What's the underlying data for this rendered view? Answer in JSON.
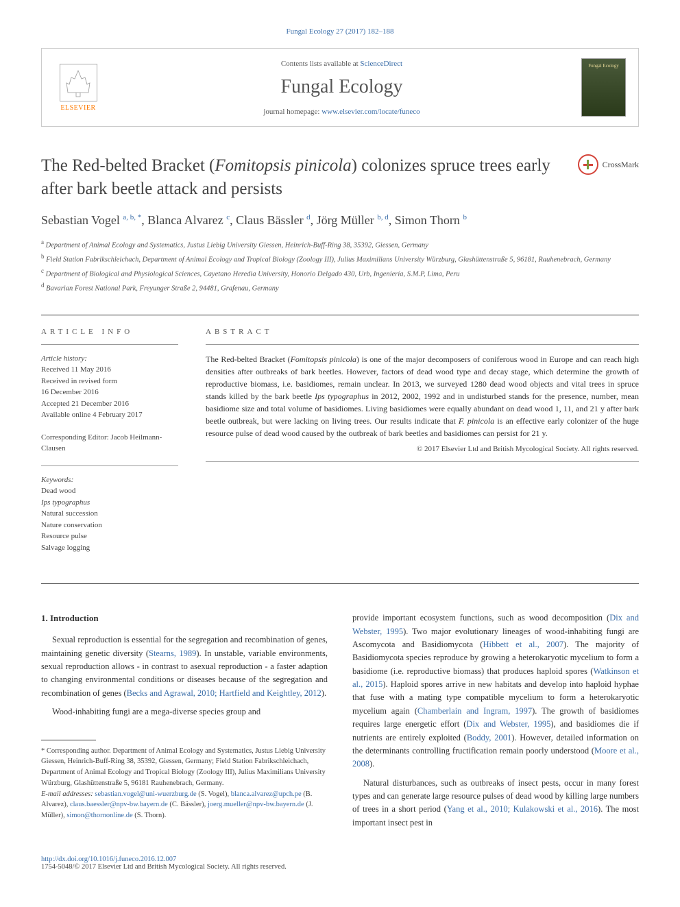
{
  "citation": "Fungal Ecology 27 (2017) 182–188",
  "header": {
    "contents_prefix": "Contents lists available at ",
    "contents_link": "ScienceDirect",
    "journal_name": "Fungal Ecology",
    "homepage_prefix": "journal homepage: ",
    "homepage_link": "www.elsevier.com/locate/funeco",
    "publisher": "ELSEVIER",
    "cover_label": "Fungal Ecology"
  },
  "article": {
    "title_pre": "The Red-belted Bracket (",
    "title_species": "Fomitopsis pinicola",
    "title_post": ") colonizes spruce trees early after bark beetle attack and persists",
    "crossmark": "CrossMark"
  },
  "authors": [
    {
      "name": "Sebastian Vogel",
      "sup": "a, b, *"
    },
    {
      "name": "Blanca Alvarez",
      "sup": "c"
    },
    {
      "name": "Claus Bässler",
      "sup": "d"
    },
    {
      "name": "Jörg Müller",
      "sup": "b, d"
    },
    {
      "name": "Simon Thorn",
      "sup": "b"
    }
  ],
  "affiliations": [
    {
      "sup": "a",
      "text": "Department of Animal Ecology and Systematics, Justus Liebig University Giessen, Heinrich-Buff-Ring 38, 35392, Giessen, Germany"
    },
    {
      "sup": "b",
      "text": "Field Station Fabrikschleichach, Department of Animal Ecology and Tropical Biology (Zoology III), Julius Maximilians University Würzburg, Glashüttenstraße 5, 96181, Rauhenebrach, Germany"
    },
    {
      "sup": "c",
      "text": "Department of Biological and Physiological Sciences, Cayetano Heredia University, Honorio Delgado 430, Urb, Ingeniería, S.M.P, Lima, Peru"
    },
    {
      "sup": "d",
      "text": "Bavarian Forest National Park, Freyunger Straße 2, 94481, Grafenau, Germany"
    }
  ],
  "info": {
    "heading": "ARTICLE INFO",
    "history_label": "Article history:",
    "history": [
      "Received 11 May 2016",
      "Received in revised form",
      "16 December 2016",
      "Accepted 21 December 2016",
      "Available online 4 February 2017"
    ],
    "editor_label": "Corresponding Editor:",
    "editor": "Jacob Heilmann-Clausen",
    "keywords_label": "Keywords:",
    "keywords": [
      "Dead wood",
      "Ips typographus",
      "Natural succession",
      "Nature conservation",
      "Resource pulse",
      "Salvage logging"
    ]
  },
  "abstract": {
    "heading": "ABSTRACT",
    "text_1": "The Red-belted Bracket (",
    "species_1": "Fomitopsis pinicola",
    "text_2": ") is one of the major decomposers of coniferous wood in Europe and can reach high densities after outbreaks of bark beetles. However, factors of dead wood type and decay stage, which determine the growth of reproductive biomass, i.e. basidiomes, remain unclear. In 2013, we surveyed 1280 dead wood objects and vital trees in spruce stands killed by the bark beetle ",
    "species_2": "Ips typographus",
    "text_3": " in 2012, 2002, 1992 and in undisturbed stands for the presence, number, mean basidiome size and total volume of basidiomes. Living basidiomes were equally abundant on dead wood 1, 11, and 21 y after bark beetle outbreak, but were lacking on living trees. Our results indicate that ",
    "species_3": "F. pinicola",
    "text_4": " is an effective early colonizer of the huge resource pulse of dead wood caused by the outbreak of bark beetles and basidiomes can persist for 21 y.",
    "copyright": "© 2017 Elsevier Ltd and British Mycological Society. All rights reserved."
  },
  "body": {
    "section_heading": "1. Introduction",
    "col1_p1_a": "Sexual reproduction is essential for the segregation and recombination of genes, maintaining genetic diversity (",
    "col1_p1_ref1": "Stearns, 1989",
    "col1_p1_b": "). In unstable, variable environments, sexual reproduction allows - in contrast to asexual reproduction - a faster adaption to changing environmental conditions or diseases because of the segregation and recombination of genes (",
    "col1_p1_ref2": "Becks and Agrawal, 2010; Hartfield and Keightley, 2012",
    "col1_p1_c": ").",
    "col1_p2": "Wood-inhabiting fungi are a mega-diverse species group and",
    "col2_p1_a": "provide important ecosystem functions, such as wood decomposition (",
    "col2_ref1": "Dix and Webster, 1995",
    "col2_p1_b": "). Two major evolutionary lineages of wood-inhabiting fungi are Ascomycota and Basidiomycota (",
    "col2_ref2": "Hibbett et al., 2007",
    "col2_p1_c": "). The majority of Basidiomycota species reproduce by growing a heterokaryotic mycelium to form a basidiome (i.e. reproductive biomass) that produces haploid spores (",
    "col2_ref3": "Watkinson et al., 2015",
    "col2_p1_d": "). Haploid spores arrive in new habitats and develop into haploid hyphae that fuse with a mating type compatible mycelium to form a heterokaryotic mycelium again (",
    "col2_ref4": "Chamberlain and Ingram, 1997",
    "col2_p1_e": "). The growth of basidiomes requires large energetic effort (",
    "col2_ref5": "Dix and Webster, 1995",
    "col2_p1_f": "), and basidiomes die if nutrients are entirely exploited (",
    "col2_ref6": "Boddy, 2001",
    "col2_p1_g": "). However, detailed information on the determinants controlling fructification remain poorly understood (",
    "col2_ref7": "Moore et al., 2008",
    "col2_p1_h": ").",
    "col2_p2_a": "Natural disturbances, such as outbreaks of insect pests, occur in many forest types and can generate large resource pulses of dead wood by killing large numbers of trees in a short period (",
    "col2_ref8": "Yang et al., 2010; Kulakowski et al., 2016",
    "col2_p2_b": "). The most important insect pest in"
  },
  "footnote": {
    "corr_label": "* Corresponding author.",
    "corr_text": "Department of Animal Ecology and Systematics, Justus Liebig University Giessen, Heinrich-Buff-Ring 38, 35392, Giessen, Germany; Field Station Fabrikschleichach, Department of Animal Ecology and Tropical Biology (Zoology III), Julius Maximilians University Würzburg, Glashüttenstraße 5, 96181 Rauhenebrach, Germany.",
    "email_label": "E-mail addresses:",
    "emails": [
      {
        "addr": "sebastian.vogel@uni-wuerzburg.de",
        "who": "(S. Vogel)"
      },
      {
        "addr": "blanca.alvarez@upch.pe",
        "who": "(B. Alvarez)"
      },
      {
        "addr": "claus.baessler@npv-bw.bayern.de",
        "who": "(C. Bässler)"
      },
      {
        "addr": "joerg.mueller@npv-bw.bayern.de",
        "who": "(J. Müller)"
      },
      {
        "addr": "simon@thornonline.de",
        "who": "(S. Thorn)"
      }
    ]
  },
  "footer": {
    "doi": "http://dx.doi.org/10.1016/j.funeco.2016.12.007",
    "issn": "1754-5048/© 2017 Elsevier Ltd and British Mycological Society. All rights reserved."
  },
  "colors": {
    "link": "#3a6da8",
    "text": "#333333",
    "accent": "#ff7a00"
  }
}
